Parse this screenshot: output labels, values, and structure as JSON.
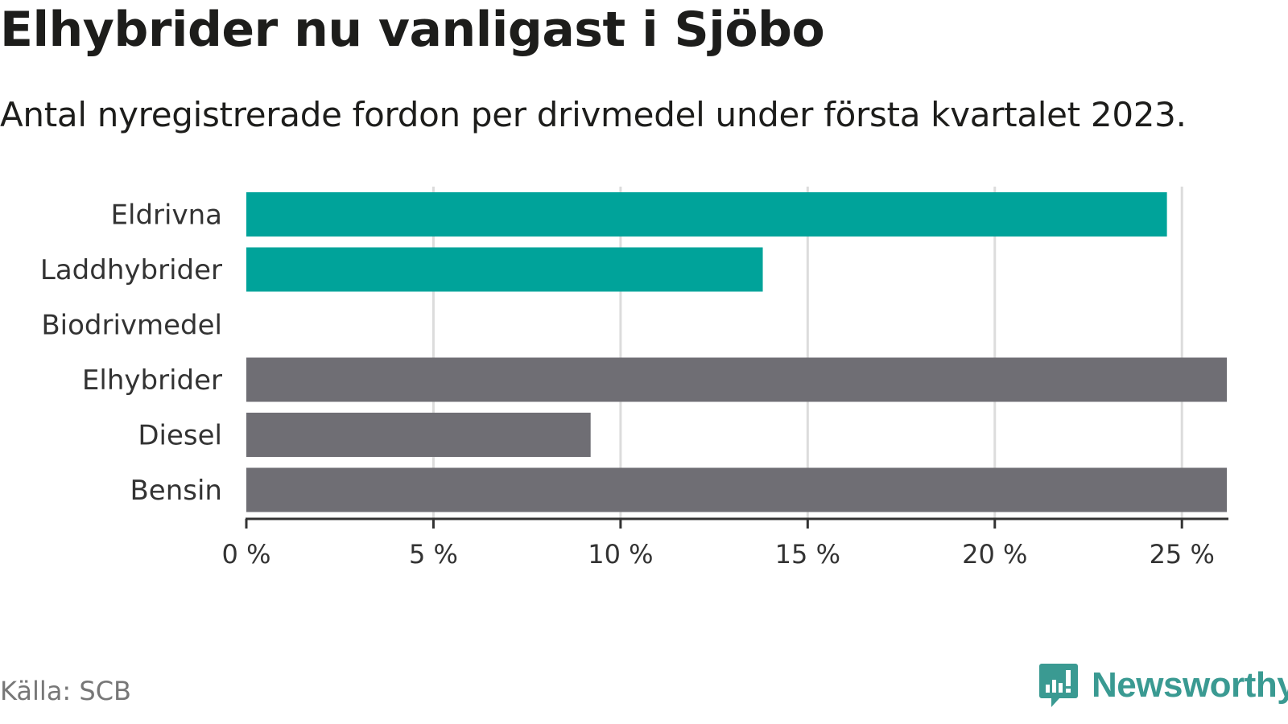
{
  "header": {
    "title": "Elhybrider nu vanligast i Sjöbo",
    "subtitle": "Antal nyregistrerade fordon per drivmedel under första kvartalet 2023."
  },
  "chart_data": {
    "type": "bar",
    "orientation": "horizontal",
    "categories": [
      "Eldrivna",
      "Laddhybrider",
      "Biodrivmedel",
      "Elhybrider",
      "Diesel",
      "Bensin"
    ],
    "values": [
      24.6,
      13.8,
      0,
      26.2,
      9.2,
      26.2
    ],
    "colors": [
      "#00a39a",
      "#00a39a",
      "#00a39a",
      "#6f6e74",
      "#6f6e74",
      "#6f6e74"
    ],
    "xlim": [
      0,
      26.2
    ],
    "xticks": [
      0,
      5,
      10,
      15,
      20,
      25
    ],
    "xtick_labels": [
      "0 %",
      "5 %",
      "10 %",
      "15 %",
      "20 %",
      "25 %"
    ],
    "grid": "vertical"
  },
  "footer": {
    "source": "Källa: SCB",
    "brand": "Newsworthy",
    "brand_icon": "newsworthy-logo-icon",
    "brand_color": "#3a9a92"
  }
}
